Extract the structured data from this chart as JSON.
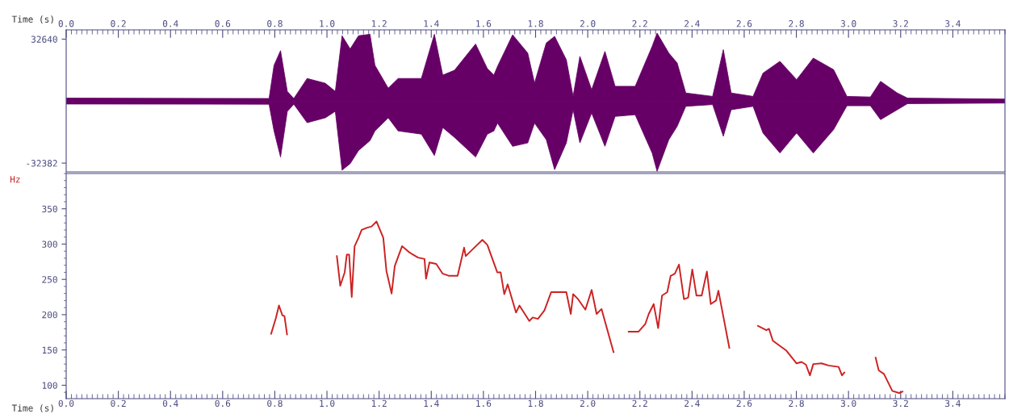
{
  "chart_data": [
    {
      "type": "area",
      "xlabel": "Time (s)",
      "xlim": [
        0,
        3.6
      ],
      "ylim": [
        -37000,
        37500
      ],
      "xticks": [
        {
          "value": 0,
          "label": "0.0"
        },
        {
          "value": 0.2,
          "label": "0.2"
        },
        {
          "value": 0.4,
          "label": "0.4"
        },
        {
          "value": 0.6,
          "label": "0.6"
        },
        {
          "value": 0.8,
          "label": "0.8"
        },
        {
          "value": 1.0,
          "label": "1.0"
        },
        {
          "value": 1.2,
          "label": "1.2"
        },
        {
          "value": 1.4,
          "label": "1.4"
        },
        {
          "value": 1.6,
          "label": "1.6"
        },
        {
          "value": 1.8,
          "label": "1.8"
        },
        {
          "value": 2.0,
          "label": "2.0"
        },
        {
          "value": 2.2,
          "label": "2.2"
        },
        {
          "value": 2.4,
          "label": "2.4"
        },
        {
          "value": 2.6,
          "label": "2.6"
        },
        {
          "value": 2.8,
          "label": "2.8"
        },
        {
          "value": 3.0,
          "label": "3.0"
        },
        {
          "value": 3.2,
          "label": "3.2"
        },
        {
          "value": 3.4,
          "label": "3.4"
        }
      ],
      "yticks": [
        32640,
        -32382
      ],
      "grid": false,
      "legend": false,
      "x": [
        0.0,
        0.778,
        0.797,
        0.822,
        0.848,
        0.873,
        0.924,
        0.994,
        1.032,
        1.058,
        1.089,
        1.121,
        1.165,
        1.184,
        1.235,
        1.273,
        1.362,
        1.412,
        1.444,
        1.489,
        1.57,
        1.615,
        1.64,
        1.654,
        1.712,
        1.77,
        1.796,
        1.841,
        1.873,
        1.918,
        1.944,
        1.97,
        2.015,
        2.066,
        2.105,
        2.182,
        2.247,
        2.266,
        2.311,
        2.343,
        2.376,
        2.479,
        2.52,
        2.55,
        2.634,
        2.672,
        2.737,
        2.801,
        2.865,
        2.943,
        2.994,
        3.084,
        3.123,
        3.187,
        3.226,
        3.6
      ],
      "series": [
        {
          "color": "#660066",
          "values": [
            1700,
            1500,
            18900,
            26600,
            5200,
            1500,
            12000,
            9500,
            5200,
            34400,
            27500,
            34400,
            35200,
            18900,
            6900,
            12000,
            12000,
            35200,
            13750,
            16300,
            30100,
            17200,
            13750,
            18300,
            34900,
            25300,
            9600,
            30600,
            34100,
            21800,
            2600,
            23600,
            6100,
            26200,
            7900,
            7900,
            28800,
            35800,
            25300,
            20100,
            4400,
            2600,
            27100,
            4400,
            2600,
            14800,
            21000,
            11400,
            22700,
            16600,
            2600,
            2300,
            10500,
            4400,
            1700,
            1200
          ]
        },
        {
          "color": "#660066",
          "values": [
            -1400,
            -1500,
            -15500,
            -29200,
            -5200,
            -1500,
            -11200,
            -8600,
            -5200,
            -36100,
            -32700,
            -25800,
            -20600,
            -15500,
            -8600,
            -15500,
            -17200,
            -28400,
            -13750,
            -18900,
            -29200,
            -17200,
            -15500,
            -11400,
            -23600,
            -21800,
            -11400,
            -20100,
            -35800,
            -21800,
            -4400,
            -21800,
            -6100,
            -23600,
            -7900,
            -7000,
            -27100,
            -36700,
            -20100,
            -13100,
            -2600,
            -1700,
            -18300,
            -4400,
            -2600,
            -16600,
            -27100,
            -16600,
            -27100,
            -14800,
            -2300,
            -2300,
            -9600,
            -4400,
            -1200,
            -900
          ]
        }
      ]
    },
    {
      "type": "line",
      "xlabel": "Time (s)",
      "ylabel": "Hz",
      "xlim": [
        0,
        3.6
      ],
      "ylim": [
        81,
        400
      ],
      "xticks": [
        {
          "value": 0,
          "label": "0.0"
        },
        {
          "value": 0.2,
          "label": "0.2"
        },
        {
          "value": 0.4,
          "label": "0.4"
        },
        {
          "value": 0.6,
          "label": "0.6"
        },
        {
          "value": 0.8,
          "label": "0.8"
        },
        {
          "value": 1.0,
          "label": "1.0"
        },
        {
          "value": 1.2,
          "label": "1.2"
        },
        {
          "value": 1.4,
          "label": "1.4"
        },
        {
          "value": 1.6,
          "label": "1.6"
        },
        {
          "value": 1.8,
          "label": "1.8"
        },
        {
          "value": 2.0,
          "label": "2.0"
        },
        {
          "value": 2.2,
          "label": "2.2"
        },
        {
          "value": 2.4,
          "label": "2.4"
        },
        {
          "value": 2.6,
          "label": "2.6"
        },
        {
          "value": 2.8,
          "label": "2.8"
        },
        {
          "value": 3.0,
          "label": "3.0"
        },
        {
          "value": 3.2,
          "label": "3.2"
        },
        {
          "value": 3.4,
          "label": "3.4"
        }
      ],
      "yticks": [
        100,
        150,
        200,
        250,
        300,
        350
      ],
      "grid": false,
      "legend": false,
      "marker": "none",
      "line_style": "solid",
      "series": [
        {
          "color": "#cc2222",
          "x": [
            0.786,
            0.804,
            0.816,
            0.829,
            0.837,
            0.847
          ],
          "values": [
            173,
            195,
            213,
            199,
            198,
            172
          ]
        },
        {
          "color": "#cc2222",
          "x": [
            1.038,
            1.051,
            1.068,
            1.076,
            1.085,
            1.095,
            1.106,
            1.121,
            1.133,
            1.152,
            1.171,
            1.19,
            1.216,
            1.228,
            1.248,
            1.26,
            1.288,
            1.317,
            1.349,
            1.374,
            1.38,
            1.393,
            1.419,
            1.444,
            1.469,
            1.501,
            1.526,
            1.532,
            1.565,
            1.596,
            1.615,
            1.653,
            1.666,
            1.68,
            1.693,
            1.725,
            1.738,
            1.776,
            1.789,
            1.809,
            1.834,
            1.86,
            1.918,
            1.935,
            1.944,
            1.963,
            1.991,
            2.015,
            2.034,
            2.053,
            2.099
          ],
          "values": [
            283,
            241,
            260,
            285,
            285,
            225,
            297,
            309,
            320,
            323,
            325,
            332,
            309,
            262,
            230,
            269,
            297,
            288,
            281,
            279,
            251,
            274,
            272,
            258,
            255,
            255,
            295,
            283,
            295,
            306,
            299,
            260,
            260,
            229,
            243,
            203,
            213,
            191,
            196,
            194,
            206,
            232,
            232,
            201,
            229,
            222,
            207,
            235,
            201,
            208,
            147
          ]
        },
        {
          "color": "#cc2222",
          "x": [
            2.157,
            2.195,
            2.221,
            2.234,
            2.253,
            2.27,
            2.285,
            2.305,
            2.318,
            2.334,
            2.35,
            2.369,
            2.385,
            2.401,
            2.417,
            2.437,
            2.457,
            2.472,
            2.492,
            2.501,
            2.543
          ],
          "values": [
            176,
            176,
            187,
            201,
            215,
            181,
            227,
            232,
            255,
            258,
            271,
            222,
            224,
            264,
            227,
            227,
            261,
            215,
            220,
            234,
            153
          ]
        },
        {
          "color": "#cc2222",
          "x": [
            2.653,
            2.685,
            2.695,
            2.71,
            2.762,
            2.801,
            2.82,
            2.837,
            2.852,
            2.865,
            2.897,
            2.923,
            2.962,
            2.975,
            2.984
          ],
          "values": [
            184,
            178,
            180,
            163,
            149,
            131,
            133,
            129,
            114,
            130,
            131,
            128,
            126,
            114,
            118
          ]
        },
        {
          "color": "#cc2222",
          "x": [
            3.104,
            3.116,
            3.136,
            3.168,
            3.194,
            3.207
          ],
          "values": [
            139,
            121,
            116,
            92,
            89,
            91
          ]
        }
      ]
    }
  ]
}
